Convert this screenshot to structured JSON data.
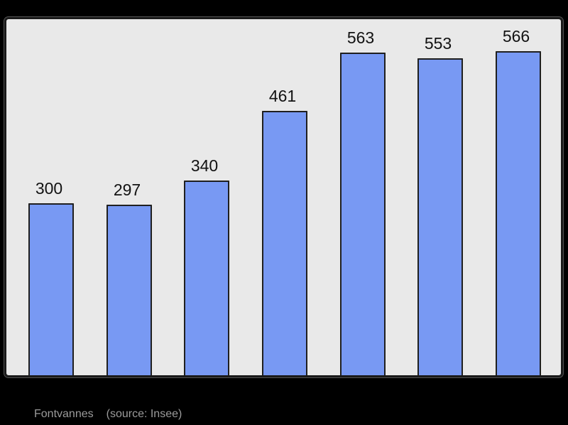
{
  "page": {
    "background": "#000000",
    "footer": {
      "commune": "Fontvannes",
      "source": "(source: Insee)"
    }
  },
  "chart_data": {
    "type": "bar",
    "title": "",
    "values": [
      300,
      297,
      340,
      461,
      563,
      553,
      566
    ],
    "data_labels": [
      "300",
      "297",
      "340",
      "461",
      "563",
      "553",
      "566"
    ],
    "ylim": [
      0,
      620
    ],
    "grid": false,
    "legend": false,
    "axes_visible": false,
    "colors": {
      "bar_fill": "#7899f3",
      "bar_border": "#1f1f1f",
      "plot_background": "#e9e9e9",
      "frame_border": "#1a1a1a",
      "value_label": "#121212",
      "footer_text": "#9b9b9b",
      "page_background": "#000000"
    }
  }
}
